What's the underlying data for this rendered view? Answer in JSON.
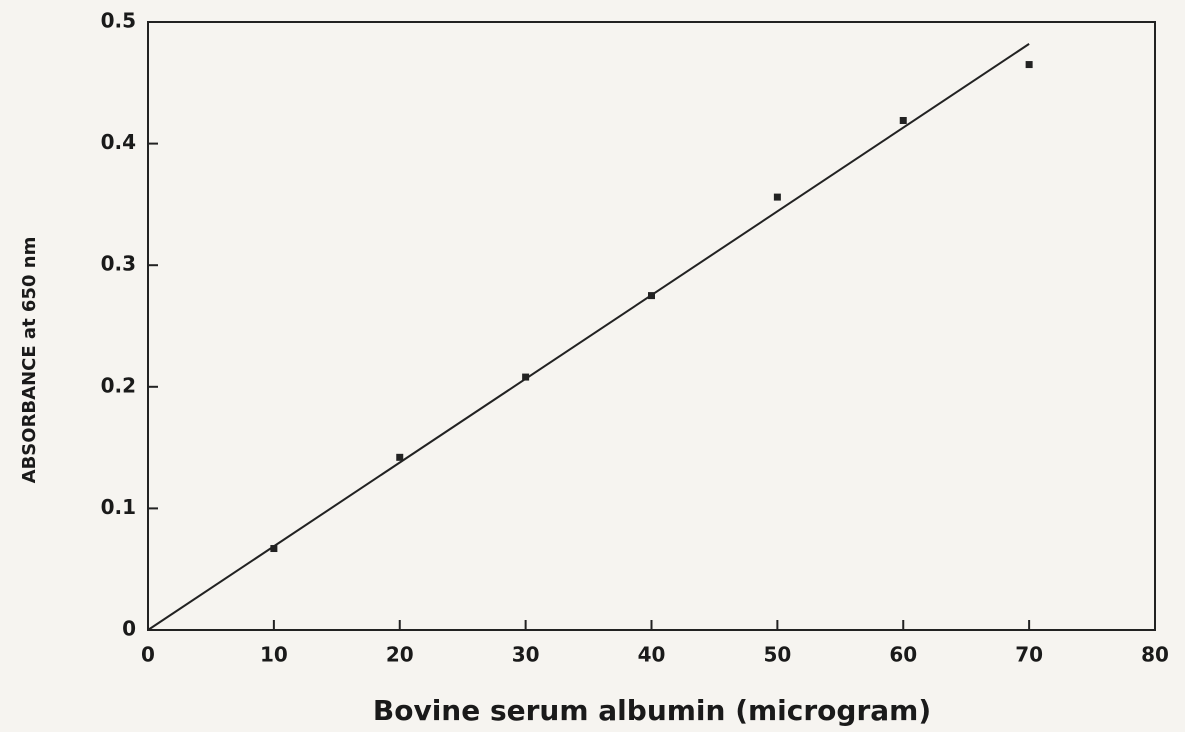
{
  "chart_data": {
    "type": "scatter",
    "x_label": "Bovine serum albumin (microgram)",
    "y_label": "ABSORBANCE at 650 nm",
    "points": {
      "x": [
        10,
        20,
        30,
        40,
        50,
        60,
        70
      ],
      "y": [
        0.067,
        0.142,
        0.208,
        0.275,
        0.356,
        0.419,
        0.465
      ],
      "color": "#222222"
    },
    "fit_line": {
      "x": [
        0,
        70
      ],
      "y": [
        0,
        0.482
      ],
      "color": "#222222"
    },
    "xlim": [
      0,
      80
    ],
    "xticks": [
      0,
      10,
      20,
      30,
      40,
      50,
      60,
      70,
      80
    ],
    "ylim": [
      0,
      0.5
    ],
    "yticks": [
      0,
      0.1,
      0.2,
      0.3,
      0.4,
      0.5
    ]
  }
}
